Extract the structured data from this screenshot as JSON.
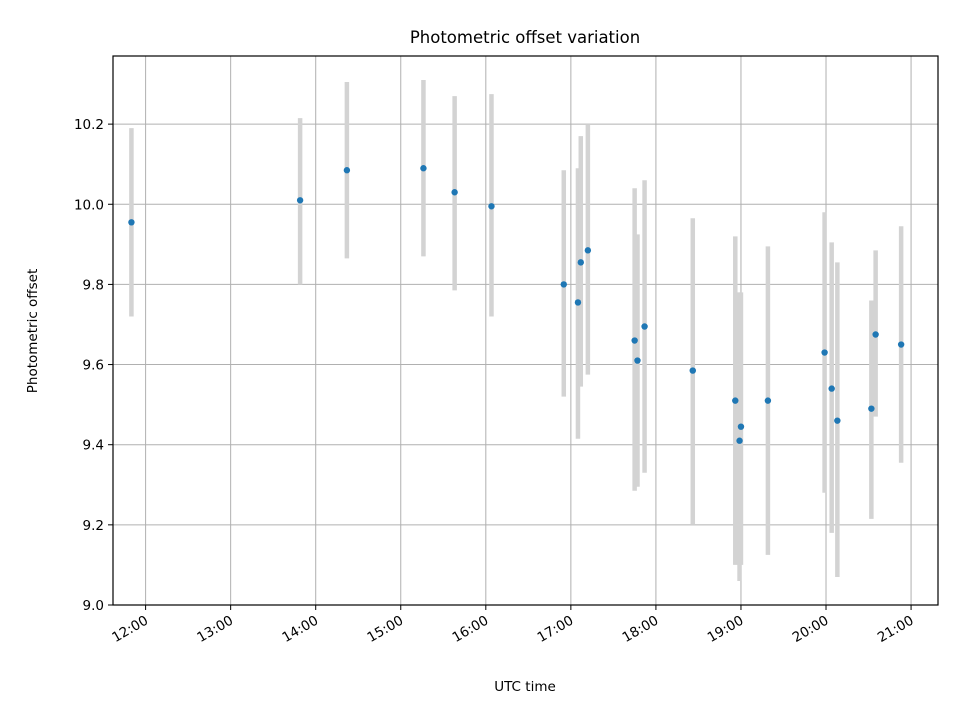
{
  "chart_data": {
    "type": "scatter",
    "title": "Photometric offset variation",
    "xlabel": "UTC time",
    "ylabel": "Photometric offset",
    "x_ticks": [
      "12:00",
      "13:00",
      "14:00",
      "15:00",
      "16:00",
      "17:00",
      "18:00",
      "19:00",
      "20:00",
      "21:00"
    ],
    "y_ticks": [
      "9.0",
      "9.2",
      "9.4",
      "9.6",
      "9.8",
      "10.0",
      "10.2"
    ],
    "xlim": [
      "11:37",
      "21:19"
    ],
    "ylim": [
      9.0,
      10.37
    ],
    "grid": true,
    "colors": {
      "point": "#1f77b4",
      "errorbar": "#d3d3d3"
    },
    "series": [
      {
        "points": [
          {
            "x": "11:50",
            "y": 9.955,
            "ylow": 9.72,
            "yhigh": 10.19
          },
          {
            "x": "13:49",
            "y": 10.01,
            "ylow": 9.8,
            "yhigh": 10.215
          },
          {
            "x": "14:22",
            "y": 10.085,
            "ylow": 9.865,
            "yhigh": 10.305
          },
          {
            "x": "15:16",
            "y": 10.09,
            "ylow": 9.87,
            "yhigh": 10.31
          },
          {
            "x": "15:38",
            "y": 10.03,
            "ylow": 9.785,
            "yhigh": 10.27
          },
          {
            "x": "16:04",
            "y": 9.995,
            "ylow": 9.72,
            "yhigh": 10.275
          },
          {
            "x": "16:55",
            "y": 9.8,
            "ylow": 9.52,
            "yhigh": 10.085
          },
          {
            "x": "17:05",
            "y": 9.755,
            "ylow": 9.415,
            "yhigh": 10.09
          },
          {
            "x": "17:07",
            "y": 9.855,
            "ylow": 9.545,
            "yhigh": 10.17
          },
          {
            "x": "17:12",
            "y": 9.885,
            "ylow": 9.575,
            "yhigh": 10.2
          },
          {
            "x": "17:45",
            "y": 9.66,
            "ylow": 9.285,
            "yhigh": 10.04
          },
          {
            "x": "17:47",
            "y": 9.61,
            "ylow": 9.295,
            "yhigh": 9.925
          },
          {
            "x": "17:52",
            "y": 9.695,
            "ylow": 9.33,
            "yhigh": 10.06
          },
          {
            "x": "18:26",
            "y": 9.585,
            "ylow": 9.2,
            "yhigh": 9.965
          },
          {
            "x": "18:56",
            "y": 9.51,
            "ylow": 9.1,
            "yhigh": 9.92
          },
          {
            "x": "18:59",
            "y": 9.41,
            "ylow": 9.06,
            "yhigh": 9.78
          },
          {
            "x": "19:00",
            "y": 9.445,
            "ylow": 9.1,
            "yhigh": 9.78
          },
          {
            "x": "19:19",
            "y": 9.51,
            "ylow": 9.125,
            "yhigh": 9.895
          },
          {
            "x": "19:59",
            "y": 9.63,
            "ylow": 9.28,
            "yhigh": 9.98
          },
          {
            "x": "20:04",
            "y": 9.54,
            "ylow": 9.18,
            "yhigh": 9.905
          },
          {
            "x": "20:08",
            "y": 9.46,
            "ylow": 9.07,
            "yhigh": 9.855
          },
          {
            "x": "20:32",
            "y": 9.49,
            "ylow": 9.215,
            "yhigh": 9.76
          },
          {
            "x": "20:35",
            "y": 9.675,
            "ylow": 9.47,
            "yhigh": 9.885
          },
          {
            "x": "20:53",
            "y": 9.65,
            "ylow": 9.355,
            "yhigh": 9.945
          }
        ]
      }
    ]
  }
}
